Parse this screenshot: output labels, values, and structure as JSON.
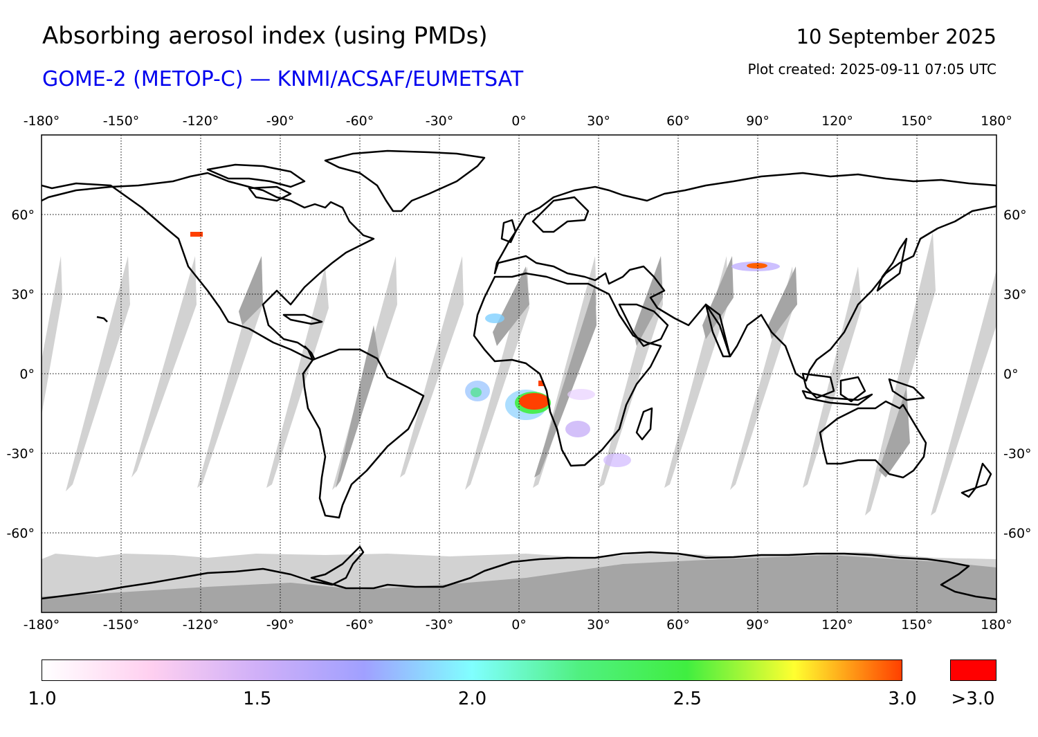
{
  "header": {
    "title": "Absorbing aerosol index (using PMDs)",
    "subtitle": "GOME-2 (METOP-C) — KNMI/ACSAF/EUMETSAT",
    "date": "10 September 2025",
    "created": "Plot created: 2025-09-11 07:05 UTC"
  },
  "map": {
    "lon_ticks": [
      "-180°",
      "-150°",
      "-120°",
      "-90°",
      "-60°",
      "-30°",
      "0°",
      "30°",
      "60°",
      "90°",
      "120°",
      "150°",
      "180°"
    ],
    "lat_ticks": [
      "60°",
      "30°",
      "0°",
      "-30°",
      "-60°"
    ],
    "lon_range": [
      -180,
      180
    ],
    "lat_range": [
      -90,
      90
    ],
    "colors": {
      "no_data_light": "#d2d2d2",
      "no_data_dark": "#a5a5a5",
      "coast": "#000000",
      "grid": "#000000",
      "high": "#ff0000"
    }
  },
  "colorbar": {
    "labels": [
      "1.0",
      "1.5",
      "2.0",
      "2.5",
      "3.0"
    ],
    "over_label": ">3.0",
    "range": [
      1.0,
      3.0
    ],
    "over_color": "#ff0000",
    "stops": [
      "#ffffff",
      "#ffd0f0",
      "#d0b0f8",
      "#a0a0ff",
      "#80ffff",
      "#50f080",
      "#40ee40",
      "#ffff30",
      "#ff4000"
    ]
  }
}
